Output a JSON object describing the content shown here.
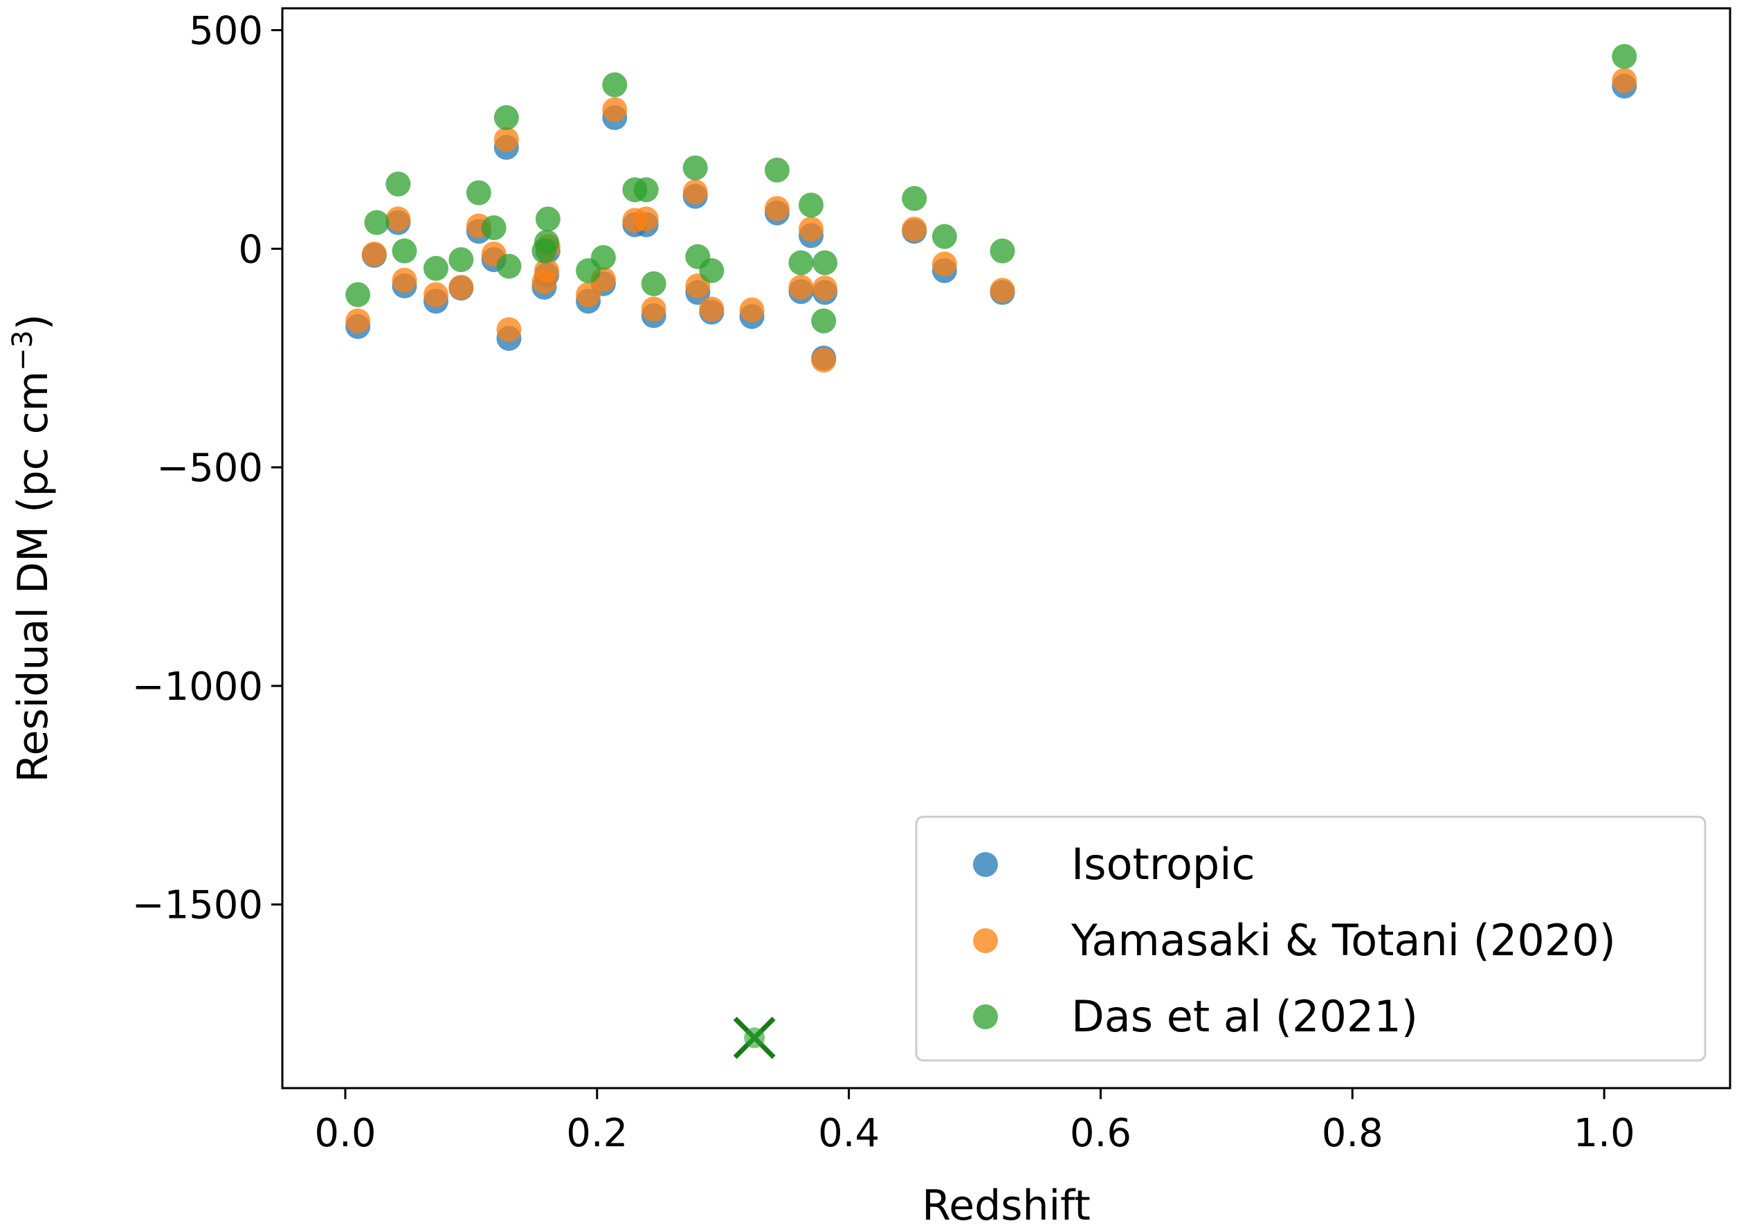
{
  "chart_data": {
    "type": "scatter",
    "title": "",
    "xlabel": "Redshift",
    "ylabel": "Residual DM (pc cm",
    "ylabel_sup": "−3",
    "ylabel_close": ")",
    "xlim": [
      -0.05,
      1.1
    ],
    "ylim": [
      -1920,
      550
    ],
    "xticks": [
      {
        "value": 0.0,
        "label": "0.0"
      },
      {
        "value": 0.2,
        "label": "0.2"
      },
      {
        "value": 0.4,
        "label": "0.4"
      },
      {
        "value": 0.6,
        "label": "0.6"
      },
      {
        "value": 0.8,
        "label": "0.8"
      },
      {
        "value": 1.0,
        "label": "1.0"
      }
    ],
    "yticks": [
      {
        "value": 500,
        "label": "500"
      },
      {
        "value": 0,
        "label": "0"
      },
      {
        "value": -500,
        "label": "−500"
      },
      {
        "value": -1000,
        "label": "−1000"
      },
      {
        "value": -1500,
        "label": "−1500"
      }
    ],
    "legend_position": "lower-right",
    "series": [
      {
        "name": "Isotropic",
        "color": "#1f77b4",
        "points": [
          [
            0.01,
            -178
          ],
          [
            0.023,
            -15
          ],
          [
            0.042,
            60
          ],
          [
            0.047,
            -85
          ],
          [
            0.072,
            -120
          ],
          [
            0.092,
            -90
          ],
          [
            0.106,
            40
          ],
          [
            0.118,
            -25
          ],
          [
            0.128,
            232
          ],
          [
            0.13,
            -205
          ],
          [
            0.158,
            -88
          ],
          [
            0.16,
            -60
          ],
          [
            0.161,
            -5
          ],
          [
            0.193,
            -120
          ],
          [
            0.205,
            -80
          ],
          [
            0.214,
            300
          ],
          [
            0.23,
            55
          ],
          [
            0.239,
            55
          ],
          [
            0.245,
            -153
          ],
          [
            0.278,
            120
          ],
          [
            0.28,
            -100
          ],
          [
            0.291,
            -145
          ],
          [
            0.323,
            -155
          ],
          [
            0.343,
            82
          ],
          [
            0.362,
            -98
          ],
          [
            0.37,
            30
          ],
          [
            0.38,
            -250
          ],
          [
            0.381,
            -100
          ],
          [
            0.452,
            40
          ],
          [
            0.476,
            -50
          ],
          [
            0.522,
            -100
          ],
          [
            1.016,
            372
          ]
        ]
      },
      {
        "name": "Yamasaki & Totani (2020)",
        "color": "#ff7f0e",
        "points": [
          [
            0.01,
            -165
          ],
          [
            0.023,
            -12
          ],
          [
            0.042,
            68
          ],
          [
            0.047,
            -72
          ],
          [
            0.072,
            -105
          ],
          [
            0.092,
            -88
          ],
          [
            0.106,
            52
          ],
          [
            0.118,
            -12
          ],
          [
            0.128,
            250
          ],
          [
            0.13,
            -185
          ],
          [
            0.158,
            -75
          ],
          [
            0.16,
            -50
          ],
          [
            0.161,
            5
          ],
          [
            0.193,
            -105
          ],
          [
            0.205,
            -70
          ],
          [
            0.214,
            318
          ],
          [
            0.23,
            65
          ],
          [
            0.239,
            68
          ],
          [
            0.245,
            -138
          ],
          [
            0.278,
            130
          ],
          [
            0.28,
            -85
          ],
          [
            0.291,
            -138
          ],
          [
            0.323,
            -140
          ],
          [
            0.343,
            92
          ],
          [
            0.362,
            -88
          ],
          [
            0.37,
            45
          ],
          [
            0.38,
            -255
          ],
          [
            0.381,
            -90
          ],
          [
            0.452,
            45
          ],
          [
            0.476,
            -35
          ],
          [
            0.522,
            -95
          ],
          [
            1.016,
            385
          ]
        ]
      },
      {
        "name": "Das et al (2021)",
        "color": "#2ca02c",
        "points": [
          [
            0.01,
            -105
          ],
          [
            0.025,
            60
          ],
          [
            0.042,
            148
          ],
          [
            0.047,
            -5
          ],
          [
            0.072,
            -45
          ],
          [
            0.092,
            -25
          ],
          [
            0.106,
            128
          ],
          [
            0.118,
            48
          ],
          [
            0.128,
            300
          ],
          [
            0.13,
            -40
          ],
          [
            0.158,
            -5
          ],
          [
            0.16,
            15
          ],
          [
            0.161,
            68
          ],
          [
            0.193,
            -50
          ],
          [
            0.205,
            -20
          ],
          [
            0.214,
            375
          ],
          [
            0.23,
            135
          ],
          [
            0.239,
            135
          ],
          [
            0.245,
            -80
          ],
          [
            0.278,
            185
          ],
          [
            0.28,
            -18
          ],
          [
            0.291,
            -50
          ],
          [
            0.343,
            180
          ],
          [
            0.362,
            -32
          ],
          [
            0.37,
            100
          ],
          [
            0.38,
            -165
          ],
          [
            0.381,
            -32
          ],
          [
            0.452,
            115
          ],
          [
            0.476,
            28
          ],
          [
            0.522,
            -5
          ],
          [
            1.016,
            440
          ]
        ]
      }
    ],
    "outlier_marker": {
      "series": "Das et al (2021)",
      "marker": "x",
      "color": "#1a7a1a",
      "x": 0.325,
      "y": -1805
    }
  }
}
